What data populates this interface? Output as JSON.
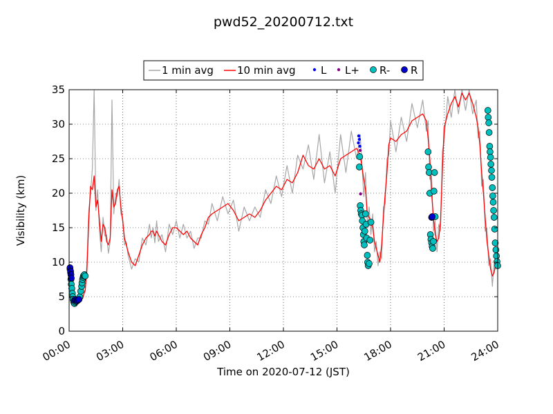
{
  "chart_data": {
    "type": "line",
    "title": "pwd52_20200712.txt",
    "xlabel": "Time on 2020-07-12 (JST)",
    "ylabel": "Visibility (km)",
    "xlim_hours": [
      0,
      24
    ],
    "ylim": [
      0,
      35
    ],
    "x_tick_labels": [
      "00:00",
      "03:00",
      "06:00",
      "09:00",
      "12:00",
      "15:00",
      "18:00",
      "21:00",
      "24:00"
    ],
    "y_tick_labels": [
      "0",
      "5",
      "10",
      "15",
      "20",
      "25",
      "30",
      "35"
    ],
    "grid": true,
    "legend_placement": "top-center",
    "legend": [
      "1 min avg",
      "10 min avg",
      "L",
      "L+",
      "R-",
      "R"
    ],
    "colors": {
      "one_min": "#a6a6a6",
      "ten_min": "#ff0000",
      "L": "#0000ff",
      "Lplus": "#800080",
      "Rminus": "#00bfbf",
      "R": "#0000cc"
    },
    "series": [
      {
        "name": "10 min avg",
        "x_hours": [
          0.0,
          0.15,
          0.3,
          0.45,
          0.6,
          0.75,
          0.9,
          1.0,
          1.1,
          1.2,
          1.3,
          1.4,
          1.5,
          1.6,
          1.7,
          1.8,
          1.9,
          2.0,
          2.1,
          2.2,
          2.3,
          2.4,
          2.5,
          2.6,
          2.7,
          2.8,
          2.9,
          3.0,
          3.1,
          3.2,
          3.3,
          3.5,
          3.7,
          3.9,
          4.1,
          4.3,
          4.5,
          4.6,
          4.7,
          4.8,
          4.9,
          5.0,
          5.2,
          5.4,
          5.6,
          5.8,
          6.0,
          6.2,
          6.4,
          6.6,
          6.8,
          7.0,
          7.2,
          7.4,
          7.6,
          7.8,
          8.0,
          8.3,
          8.6,
          8.9,
          9.2,
          9.5,
          9.8,
          10.1,
          10.4,
          10.7,
          11.0,
          11.3,
          11.6,
          11.9,
          12.2,
          12.5,
          12.8,
          13.1,
          13.4,
          13.7,
          14.0,
          14.3,
          14.6,
          14.9,
          15.2,
          15.5,
          15.8,
          16.1,
          16.3,
          16.5,
          16.6,
          16.7,
          16.8,
          16.9,
          17.0,
          17.1,
          17.2,
          17.3,
          17.4,
          17.5,
          17.6,
          17.7,
          17.8,
          17.9,
          18.0,
          18.3,
          18.6,
          18.9,
          19.2,
          19.5,
          19.8,
          20.0,
          20.1,
          20.2,
          20.3,
          20.4,
          20.5,
          20.6,
          20.7,
          20.8,
          20.9,
          21.0,
          21.2,
          21.4,
          21.6,
          21.8,
          22.0,
          22.2,
          22.4,
          22.6,
          22.8,
          22.9,
          23.0,
          23.1,
          23.2,
          23.3,
          23.4,
          23.5,
          23.6,
          23.7,
          23.8,
          23.9,
          24.0
        ],
        "values": [
          8.8,
          6.5,
          4.8,
          4.6,
          4.6,
          4.7,
          6.0,
          9.0,
          16.0,
          21.0,
          20.5,
          22.5,
          18.0,
          19.0,
          16.0,
          13.0,
          15.5,
          15.0,
          13.0,
          12.5,
          13.5,
          20.5,
          18.0,
          18.5,
          20.5,
          21.0,
          18.0,
          16.0,
          13.5,
          12.5,
          11.5,
          10.0,
          9.5,
          11.0,
          12.5,
          13.5,
          14.0,
          14.5,
          14.5,
          13.8,
          14.5,
          14.0,
          13.0,
          12.5,
          14.0,
          15.0,
          15.0,
          14.5,
          14.0,
          14.5,
          13.5,
          13.0,
          12.5,
          14.0,
          15.0,
          16.5,
          17.0,
          17.5,
          18.0,
          18.5,
          17.5,
          16.0,
          16.5,
          17.0,
          16.5,
          17.5,
          19.0,
          20.0,
          21.0,
          20.5,
          22.0,
          21.5,
          23.0,
          25.5,
          24.0,
          23.5,
          25.0,
          23.5,
          24.0,
          22.5,
          25.0,
          25.5,
          26.0,
          26.5,
          25.5,
          22.0,
          20.5,
          17.0,
          16.5,
          16.0,
          15.0,
          13.0,
          12.0,
          11.0,
          10.0,
          12.5,
          16.5,
          20.0,
          23.0,
          27.0,
          28.0,
          27.5,
          28.5,
          29.0,
          30.5,
          31.0,
          31.5,
          30.5,
          28.0,
          25.0,
          20.0,
          16.5,
          14.0,
          13.0,
          13.5,
          16.0,
          23.0,
          29.5,
          31.5,
          33.0,
          34.0,
          32.5,
          34.5,
          33.5,
          34.5,
          33.0,
          31.0,
          29.5,
          27.0,
          23.0,
          20.0,
          16.5,
          13.0,
          11.0,
          9.0,
          8.0,
          8.5,
          10.0,
          11.5
        ]
      },
      {
        "name": "1 min avg",
        "x_hours": [
          0.0,
          0.15,
          0.3,
          0.45,
          0.6,
          0.75,
          0.9,
          1.0,
          1.1,
          1.2,
          1.3,
          1.4,
          1.5,
          1.6,
          1.7,
          1.8,
          1.9,
          2.0,
          2.1,
          2.2,
          2.3,
          2.4,
          2.5,
          2.6,
          2.7,
          2.8,
          2.9,
          3.0,
          3.1,
          3.2,
          3.3,
          3.5,
          3.7,
          3.9,
          4.1,
          4.3,
          4.5,
          4.6,
          4.7,
          4.8,
          4.9,
          5.0,
          5.2,
          5.4,
          5.6,
          5.8,
          6.0,
          6.2,
          6.4,
          6.6,
          6.8,
          7.0,
          7.2,
          7.4,
          7.6,
          7.8,
          8.0,
          8.3,
          8.6,
          8.9,
          9.2,
          9.5,
          9.8,
          10.1,
          10.4,
          10.7,
          11.0,
          11.3,
          11.6,
          11.9,
          12.2,
          12.5,
          12.8,
          13.1,
          13.4,
          13.7,
          14.0,
          14.3,
          14.6,
          14.9,
          15.2,
          15.5,
          15.8,
          16.1,
          16.3,
          16.5,
          16.6,
          16.7,
          16.8,
          16.9,
          17.0,
          17.1,
          17.2,
          17.3,
          17.4,
          17.5,
          17.6,
          17.7,
          17.8,
          17.9,
          18.0,
          18.3,
          18.6,
          18.9,
          19.2,
          19.5,
          19.8,
          20.0,
          20.1,
          20.2,
          20.3,
          20.4,
          20.5,
          20.6,
          20.7,
          20.8,
          20.9,
          21.0,
          21.2,
          21.4,
          21.6,
          21.8,
          22.0,
          22.2,
          22.4,
          22.6,
          22.8,
          22.9,
          23.0,
          23.1,
          23.2,
          23.3,
          23.4,
          23.5,
          23.6,
          23.7,
          23.8,
          23.9,
          24.0
        ],
        "values": [
          9.3,
          5.2,
          3.9,
          4.9,
          4.3,
          5.0,
          5.8,
          10.0,
          17.5,
          20.0,
          23.5,
          35.0,
          17.5,
          20.5,
          14.5,
          11.5,
          16.5,
          13.8,
          14.0,
          11.3,
          13.0,
          33.5,
          17.0,
          20.0,
          19.5,
          22.0,
          17.0,
          16.5,
          12.5,
          13.0,
          11.0,
          9.0,
          10.5,
          10.0,
          13.5,
          12.5,
          15.5,
          13.5,
          15.0,
          12.8,
          16.0,
          13.0,
          14.0,
          11.5,
          15.5,
          14.0,
          16.0,
          13.5,
          15.5,
          13.5,
          14.5,
          12.0,
          13.5,
          13.5,
          16.0,
          15.5,
          18.5,
          16.0,
          19.5,
          17.0,
          19.0,
          14.5,
          18.0,
          16.0,
          18.0,
          16.5,
          20.5,
          18.5,
          22.5,
          19.5,
          24.0,
          20.0,
          25.5,
          23.5,
          27.0,
          22.0,
          28.5,
          21.5,
          26.0,
          20.0,
          28.5,
          23.0,
          29.0,
          25.0,
          28.5,
          19.5,
          23.0,
          15.0,
          18.0,
          14.0,
          17.0,
          11.5,
          13.0,
          9.5,
          11.5,
          10.5,
          18.0,
          18.5,
          25.0,
          25.5,
          30.5,
          26.0,
          31.0,
          27.5,
          33.0,
          29.5,
          33.5,
          29.0,
          30.5,
          22.0,
          22.5,
          14.5,
          16.0,
          11.5,
          15.5,
          14.5,
          26.0,
          27.5,
          34.0,
          31.0,
          35.0,
          31.5,
          35.0,
          32.0,
          35.0,
          31.5,
          33.5,
          28.0,
          29.0,
          21.0,
          22.0,
          14.5,
          15.0,
          9.5,
          10.5,
          6.5,
          10.0,
          9.0,
          12.5
        ]
      },
      {
        "name": "R-",
        "x_hours": [
          0.05,
          0.08,
          0.1,
          0.12,
          0.15,
          0.18,
          0.2,
          0.22,
          0.25,
          0.28,
          0.3,
          0.35,
          0.4,
          0.45,
          0.5,
          0.55,
          0.6,
          0.65,
          0.7,
          0.72,
          0.75,
          0.78,
          0.8,
          0.83,
          0.86,
          0.9,
          16.25,
          16.27,
          16.3,
          16.33,
          16.36,
          16.4,
          16.42,
          16.45,
          16.48,
          16.5,
          16.53,
          16.56,
          16.6,
          16.63,
          16.66,
          16.7,
          16.72,
          16.75,
          16.8,
          16.85,
          16.9,
          20.1,
          20.13,
          20.16,
          20.2,
          20.23,
          20.26,
          20.3,
          20.33,
          20.36,
          20.4,
          20.43,
          20.46,
          20.5,
          23.45,
          23.47,
          23.5,
          23.52,
          23.55,
          23.57,
          23.6,
          23.62,
          23.65,
          23.67,
          23.7,
          23.72,
          23.75,
          23.77,
          23.8,
          23.83,
          23.86,
          23.9,
          23.93,
          23.96,
          24.0
        ],
        "values": [
          9.0,
          8.5,
          7.5,
          6.8,
          6.2,
          5.5,
          5.0,
          4.6,
          4.3,
          4.1,
          4.0,
          4.2,
          4.3,
          4.4,
          4.5,
          4.6,
          5.0,
          5.8,
          6.5,
          7.0,
          7.5,
          7.8,
          8.0,
          8.1,
          8.2,
          8.0,
          23.8,
          25.3,
          18.2,
          17.5,
          17.0,
          16.8,
          16.0,
          15.0,
          14.0,
          13.0,
          12.5,
          14.5,
          17.0,
          15.5,
          13.5,
          11.0,
          10.0,
          9.5,
          9.8,
          13.2,
          15.8,
          26.0,
          23.8,
          23.0,
          20.0,
          14.0,
          13.3,
          12.8,
          12.3,
          12.0,
          13.0,
          20.3,
          23.0,
          16.6,
          32.0,
          31.0,
          30.2,
          28.8,
          26.8,
          26.0,
          25.2,
          24.2,
          23.3,
          22.3,
          20.8,
          19.6,
          18.7,
          17.5,
          16.5,
          14.8,
          12.8,
          11.8,
          10.9,
          10.1,
          9.5
        ]
      },
      {
        "name": "R",
        "x_hours": [
          0.05,
          0.08,
          0.1,
          0.12,
          0.3,
          0.35,
          0.4,
          0.45,
          0.5,
          0.55,
          20.3,
          20.33
        ],
        "values": [
          9.2,
          8.7,
          8.2,
          7.7,
          4.5,
          4.6,
          4.5,
          4.4,
          4.5,
          4.6,
          16.5,
          16.6
        ]
      },
      {
        "name": "L",
        "x_hours": [
          16.2,
          16.22,
          16.25,
          16.28
        ],
        "values": [
          27.3,
          28.3,
          27.8,
          26.8
        ]
      },
      {
        "name": "L+",
        "x_hours": [
          16.3,
          16.32
        ],
        "values": [
          26.2,
          19.9
        ]
      }
    ]
  }
}
